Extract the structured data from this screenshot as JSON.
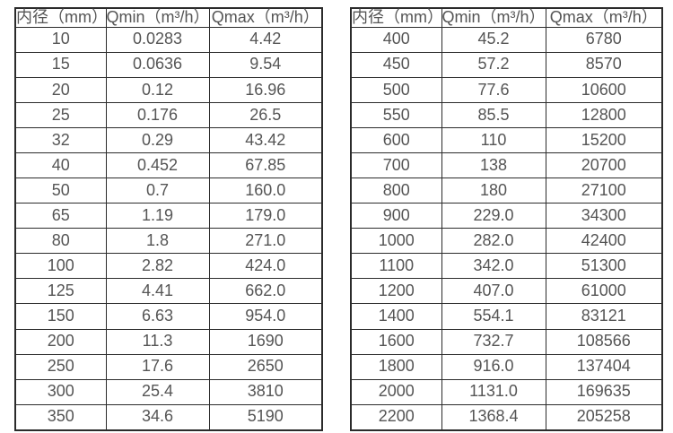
{
  "colors": {
    "background": "#ffffff",
    "border": "#2b2b2b",
    "text": "#555555"
  },
  "chart_data": [
    {
      "type": "table",
      "name": "flow-rate-table-small-diameters",
      "columns": [
        "内径（mm）",
        "Qmin（m³/h）",
        "Qmax（m³/h）"
      ],
      "rows": [
        [
          "10",
          "0.0283",
          "4.42"
        ],
        [
          "15",
          "0.0636",
          "9.54"
        ],
        [
          "20",
          "0.12",
          "16.96"
        ],
        [
          "25",
          "0.176",
          "26.5"
        ],
        [
          "32",
          "0.29",
          "43.42"
        ],
        [
          "40",
          "0.452",
          "67.85"
        ],
        [
          "50",
          "0.7",
          "160.0"
        ],
        [
          "65",
          "1.19",
          "179.0"
        ],
        [
          "80",
          "1.8",
          "271.0"
        ],
        [
          "100",
          "2.82",
          "424.0"
        ],
        [
          "125",
          "4.41",
          "662.0"
        ],
        [
          "150",
          "6.63",
          "954.0"
        ],
        [
          "200",
          "11.3",
          "1690"
        ],
        [
          "250",
          "17.6",
          "2650"
        ],
        [
          "300",
          "25.4",
          "3810"
        ],
        [
          "350",
          "34.6",
          "5190"
        ]
      ]
    },
    {
      "type": "table",
      "name": "flow-rate-table-large-diameters",
      "columns": [
        "内径（mm）",
        "Qmin（m³/h）",
        "Qmax（m³/h）"
      ],
      "rows": [
        [
          "400",
          "45.2",
          "6780"
        ],
        [
          "450",
          "57.2",
          "8570"
        ],
        [
          "500",
          "77.6",
          "10600"
        ],
        [
          "550",
          "85.5",
          "12800"
        ],
        [
          "600",
          "110",
          "15200"
        ],
        [
          "700",
          "138",
          "20700"
        ],
        [
          "800",
          "180",
          "27100"
        ],
        [
          "900",
          "229.0",
          "34300"
        ],
        [
          "1000",
          "282.0",
          "42400"
        ],
        [
          "1100",
          "342.0",
          "51300"
        ],
        [
          "1200",
          "407.0",
          "61000"
        ],
        [
          "1400",
          "554.1",
          "83121"
        ],
        [
          "1600",
          "732.7",
          "108566"
        ],
        [
          "1800",
          "916.0",
          "137404"
        ],
        [
          "2000",
          "1131.0",
          "169635"
        ],
        [
          "2200",
          "1368.4",
          "205258"
        ]
      ]
    }
  ]
}
